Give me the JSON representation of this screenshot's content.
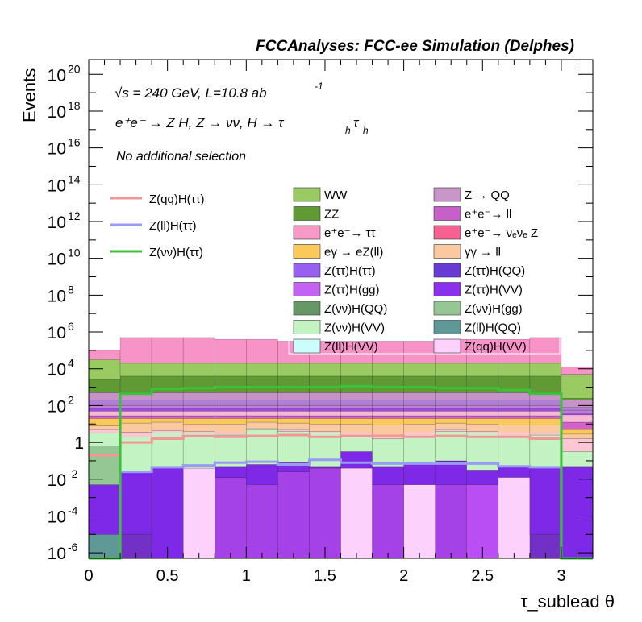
{
  "chart_data": {
    "type": "histogram-stacked",
    "title": "FCCAnalyses: FCC-ee Simulation (Delphes)",
    "xlabel": "τ_sublead θ",
    "ylabel": "Events",
    "xlim": [
      0,
      3.2
    ],
    "ylim_log10": [
      -6.3,
      20.8
    ],
    "log_y": true,
    "x_ticks": [
      0,
      0.5,
      1,
      1.5,
      2,
      2.5,
      3
    ],
    "x_tick_labels": [
      "0",
      "0.5",
      "1",
      "1.5",
      "2",
      "2.5",
      "3"
    ],
    "y_ticks": [
      {
        "exp": 20,
        "label": "10",
        "sup": "20"
      },
      {
        "exp": 18,
        "label": "10",
        "sup": "18"
      },
      {
        "exp": 16,
        "label": "10",
        "sup": "16"
      },
      {
        "exp": 14,
        "label": "10",
        "sup": "14"
      },
      {
        "exp": 12,
        "label": "10",
        "sup": "12"
      },
      {
        "exp": 10,
        "label": "10",
        "sup": "10"
      },
      {
        "exp": 8,
        "label": "10",
        "sup": "8"
      },
      {
        "exp": 6,
        "label": "10",
        "sup": "6"
      },
      {
        "exp": 4,
        "label": "10",
        "sup": "4"
      },
      {
        "exp": 2,
        "label": "10",
        "sup": "2"
      },
      {
        "exp": 0,
        "label": "1",
        "sup": ""
      },
      {
        "exp": -2,
        "label": "10",
        "sup": "-2"
      },
      {
        "exp": -4,
        "label": "10",
        "sup": "-4"
      },
      {
        "exp": -6,
        "label": "10",
        "sup": "-6"
      }
    ],
    "annotations": [
      {
        "text": "√s = 240 GeV, L=10.8 ab",
        "sup": "-1"
      },
      {
        "text": "e⁺e⁻ → Z H, Z → νν, H → τ",
        "sub": "h",
        "tail": "τ",
        "sub2": "h"
      },
      {
        "text": "No additional selection"
      }
    ],
    "bin_edges": [
      0,
      0.2,
      0.4,
      0.6,
      0.8,
      1.0,
      1.2,
      1.4,
      1.6,
      1.8,
      2.0,
      2.2,
      2.4,
      2.6,
      2.8,
      3.0,
      3.2
    ],
    "stack_boundaries_log10": [
      [
        -6.3,
        -6.3,
        -6.3,
        -6.3,
        -6.3,
        -6.3,
        -6.3,
        -6.3,
        -6.3,
        -6.3,
        -6.3,
        -6.3,
        -6.3,
        -6.3,
        -6.3,
        -6.3
      ],
      [
        -5.0,
        -6.3,
        -6.3,
        -6.3,
        -6.3,
        -6.3,
        -6.3,
        -6.3,
        -6.3,
        -6.3,
        -6.3,
        -6.3,
        -6.3,
        -6.3,
        -6.3,
        -6.3
      ],
      [
        -5.0,
        -5.0,
        -6.3,
        -6.3,
        -6.3,
        -6.3,
        -6.3,
        -6.3,
        -6.3,
        -6.3,
        -6.3,
        -6.3,
        -6.3,
        -6.3,
        -5.0,
        -6.3
      ],
      [
        -5.0,
        -5.0,
        -6.3,
        -1.4,
        -6.3,
        -6.3,
        -6.3,
        -6.3,
        -1.4,
        -6.3,
        -2.3,
        -6.3,
        -6.3,
        -1.9,
        -5.0,
        -6.3
      ],
      [
        -5.0,
        -5.0,
        -6.3,
        -1.4,
        -1.9,
        -2.3,
        -1.6,
        -1.4,
        -1.4,
        -2.3,
        -2.3,
        -2.3,
        -6.3,
        -1.9,
        -5.0,
        -6.3
      ],
      [
        -5.0,
        -5.0,
        -6.3,
        -1.4,
        -1.9,
        -2.3,
        -1.6,
        -1.4,
        -1.4,
        -2.3,
        -2.3,
        -2.3,
        -2.3,
        -1.9,
        -5.0,
        -6.3
      ],
      [
        -2.3,
        -1.6,
        -1.4,
        -1.4,
        -1.3,
        -1.2,
        -1.1,
        -1.3,
        -0.5,
        -1.3,
        -1.1,
        -1.0,
        -1.5,
        -1.3,
        -1.3,
        -1.3
      ],
      [
        -2.3,
        -1.6,
        -1.4,
        -1.4,
        -1.3,
        -1.2,
        -1.1,
        -1.3,
        -0.5,
        -1.3,
        -1.1,
        -1.0,
        -1.5,
        -1.3,
        -1.3,
        -1.3
      ],
      [
        -2.3,
        -1.6,
        -1.4,
        -1.4,
        -1.3,
        -1.2,
        -1.1,
        -1.3,
        -0.5,
        -1.3,
        -1.1,
        -1.0,
        -1.5,
        -1.3,
        -1.3,
        -1.3
      ],
      [
        -0.2,
        -1.6,
        -1.4,
        -1.4,
        -1.3,
        -1.2,
        -1.1,
        -1.3,
        -0.5,
        -1.3,
        -1.1,
        -1.0,
        -1.5,
        -1.3,
        -1.3,
        -1.3
      ],
      [
        -0.2,
        -1.6,
        -1.4,
        -1.4,
        -1.3,
        -1.2,
        -1.1,
        -1.3,
        -0.5,
        -1.3,
        -1.1,
        -1.0,
        -1.5,
        -1.3,
        -1.3,
        -1.3
      ],
      [
        0.5,
        0.3,
        0.5,
        0.5,
        0.4,
        0.7,
        0.6,
        0.5,
        0.3,
        0.2,
        0.3,
        0.6,
        0.5,
        0.3,
        0.4,
        -0.5
      ],
      [
        0.5,
        0.3,
        0.5,
        0.5,
        0.4,
        0.7,
        0.6,
        0.5,
        0.3,
        0.2,
        0.3,
        0.6,
        0.5,
        0.3,
        0.4,
        -0.5
      ],
      [
        0.7,
        0.55,
        0.65,
        0.6,
        0.5,
        0.75,
        0.7,
        0.6,
        0.5,
        0.4,
        0.5,
        0.7,
        0.6,
        0.5,
        0.5,
        0.2
      ],
      [
        0.7,
        0.55,
        0.65,
        0.6,
        0.5,
        0.75,
        0.7,
        0.6,
        0.5,
        0.4,
        0.5,
        0.7,
        0.6,
        0.5,
        0.5,
        0.2
      ],
      [
        0.9,
        1.05,
        1.1,
        1.0,
        1.0,
        1.1,
        1.05,
        1.0,
        1.0,
        0.95,
        1.0,
        1.05,
        1.0,
        0.95,
        0.95,
        0.45
      ],
      [
        1.3,
        1.3,
        1.3,
        1.3,
        1.3,
        1.3,
        1.3,
        1.3,
        1.3,
        1.3,
        1.3,
        1.3,
        1.3,
        1.3,
        1.3,
        0.7
      ],
      [
        1.45,
        1.45,
        1.45,
        1.45,
        1.45,
        1.45,
        1.45,
        1.45,
        1.45,
        1.45,
        1.45,
        1.45,
        1.45,
        1.45,
        1.45,
        1.1
      ],
      [
        1.45,
        1.45,
        1.45,
        1.45,
        1.45,
        1.45,
        1.45,
        1.45,
        1.45,
        1.45,
        1.45,
        1.45,
        1.45,
        1.45,
        1.45,
        1.1
      ],
      [
        1.7,
        1.7,
        1.7,
        1.7,
        1.7,
        1.7,
        1.7,
        1.7,
        1.7,
        1.7,
        1.7,
        1.7,
        1.7,
        1.7,
        1.7,
        1.5
      ],
      [
        1.85,
        1.85,
        1.85,
        1.85,
        1.85,
        1.85,
        1.85,
        1.85,
        1.85,
        1.85,
        1.85,
        1.85,
        1.85,
        1.85,
        1.85,
        1.6
      ],
      [
        2.0,
        2.0,
        2.0,
        2.0,
        2.0,
        2.0,
        2.0,
        2.0,
        2.0,
        2.0,
        2.0,
        2.0,
        2.0,
        2.0,
        2.0,
        1.75
      ],
      [
        2.3,
        2.3,
        2.3,
        2.3,
        2.3,
        2.3,
        2.3,
        2.3,
        2.3,
        2.3,
        2.3,
        2.3,
        2.3,
        2.3,
        2.3,
        1.9
      ],
      [
        2.7,
        2.7,
        2.7,
        2.7,
        2.7,
        2.7,
        2.7,
        2.7,
        2.7,
        2.7,
        2.7,
        2.7,
        2.7,
        2.7,
        2.7,
        2.3
      ],
      [
        3.4,
        3.6,
        3.6,
        3.6,
        3.6,
        3.6,
        3.6,
        3.6,
        3.6,
        3.6,
        3.6,
        3.6,
        3.6,
        3.6,
        3.6,
        2.4
      ],
      [
        4.5,
        4.3,
        4.3,
        4.3,
        4.3,
        4.3,
        4.3,
        4.3,
        4.3,
        4.3,
        4.3,
        4.3,
        4.3,
        4.3,
        4.3,
        3.7
      ],
      [
        5.0,
        5.7,
        5.7,
        5.7,
        5.6,
        5.6,
        5.5,
        5.5,
        5.5,
        5.5,
        5.5,
        5.6,
        5.6,
        5.6,
        5.7,
        4.1
      ]
    ],
    "stack_colors": [
      "#5f9896",
      "#7230c6",
      "#fcd2fc",
      "#a442e8",
      "#b84ef4",
      "#7e28e8",
      "#673bd4",
      "#9760f0",
      "#94c794",
      "#659865",
      "#c3f2c3",
      "#fcc7d4",
      "#fcc7d4",
      "#f7c6a0",
      "#fbc9a0",
      "#fbc95a",
      "#d460cb",
      "#d873d4",
      "#f5b8d6",
      "#9c4be0",
      "#c47dd0",
      "#b080d8",
      "#c792c8",
      "#5f9a34",
      "#9acb62",
      "#f893c7"
    ],
    "series": [
      {
        "name": "Z(qq)H(ττ)",
        "color": "#f69595",
        "values_log10": [
          -0.7,
          0.0,
          0.2,
          0.35,
          0.3,
          0.35,
          0.4,
          0.3,
          0.35,
          0.35,
          0.3,
          0.35,
          0.3,
          0.3,
          0.2,
          -6.3
        ]
      },
      {
        "name": "Z(ll)H(ττ)",
        "color": "#9a9af4",
        "values_log10": [
          -6.3,
          -1.6,
          -1.35,
          -1.25,
          -1.1,
          -1.05,
          -1.2,
          -0.95,
          -1.1,
          -1.15,
          -1.15,
          -1.15,
          -1.15,
          -1.3,
          -1.35,
          -6.3
        ]
      },
      {
        "name": "Z(νν)H(ττ)",
        "color": "#3ac23a",
        "values_log10": [
          -6.3,
          2.65,
          2.9,
          2.95,
          3.0,
          3.0,
          3.0,
          3.0,
          3.05,
          3.0,
          3.0,
          2.95,
          2.95,
          2.85,
          2.65,
          -6.3
        ]
      }
    ],
    "legend_lines": [
      "Z(qq)H(ττ)",
      "Z(ll)H(ττ)",
      "Z(νν)H(ττ)"
    ],
    "legend_fills": [
      {
        "label": "WW",
        "color": "#9acb62"
      },
      {
        "label": "Z → QQ",
        "color": "#c896c8"
      },
      {
        "label": "ZZ",
        "color": "#5f9a34"
      },
      {
        "label": "e⁺e⁻→ ll",
        "color": "#c660c8"
      },
      {
        "label": "e⁺e⁻→ ττ",
        "color": "#f89ac8"
      },
      {
        "label": "e⁺e⁻→ νₑνₑ Z",
        "color": "#f76090"
      },
      {
        "label": "eγ → eZ(ll)",
        "color": "#fbc95a"
      },
      {
        "label": "γγ → ll",
        "color": "#fbc9a0"
      },
      {
        "label": "Z(ττ)H(ττ)",
        "color": "#9760f0"
      },
      {
        "label": "Z(ττ)H(QQ)",
        "color": "#673bd4"
      },
      {
        "label": "Z(ττ)H(gg)",
        "color": "#c463f2"
      },
      {
        "label": "Z(ττ)H(VV)",
        "color": "#8c30ee"
      },
      {
        "label": "Z(νν)H(QQ)",
        "color": "#659865"
      },
      {
        "label": "Z(νν)H(gg)",
        "color": "#94c794"
      },
      {
        "label": "Z(νν)H(VV)",
        "color": "#c3f2c3"
      },
      {
        "label": "Z(ll)H(QQ)",
        "color": "#5f9896"
      },
      {
        "label": "Z(ll)H(VV)",
        "color": "#ccfcfc"
      },
      {
        "label": "Z(qq)H(VV)",
        "color": "#fcd2fc"
      }
    ]
  }
}
